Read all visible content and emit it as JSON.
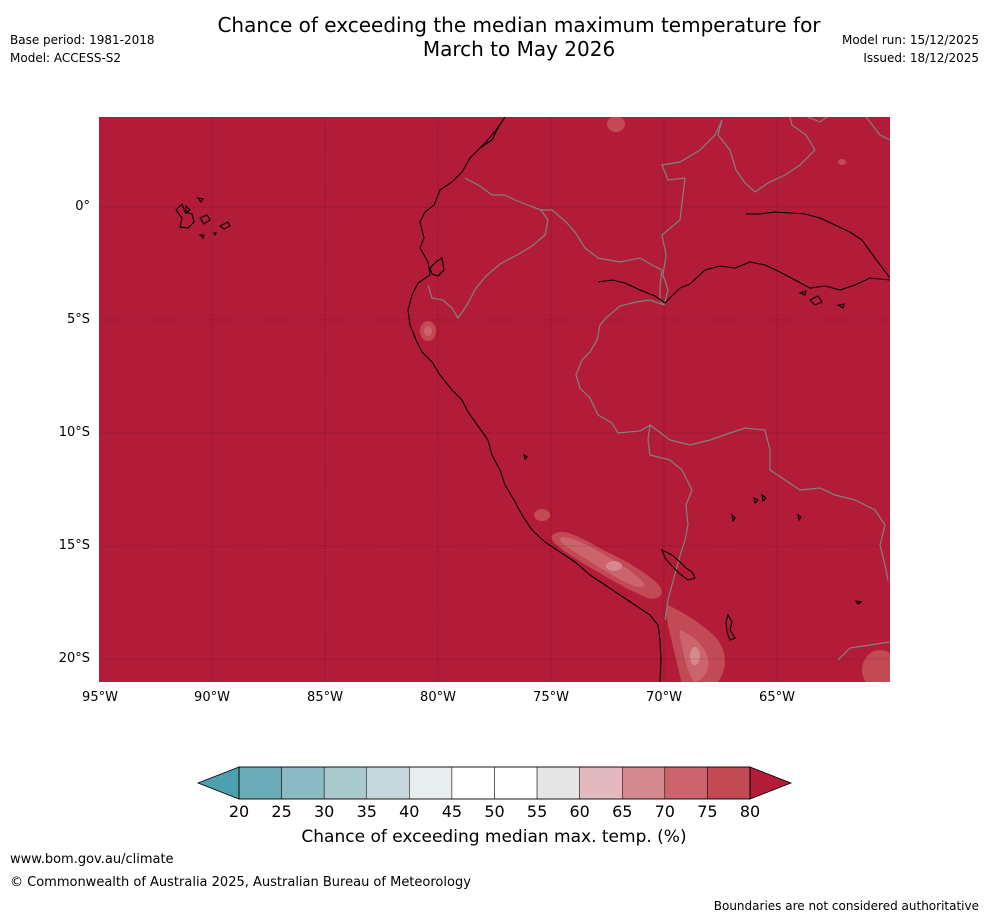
{
  "header": {
    "title_line1": "Chance of exceeding the median maximum temperature for",
    "title_line2": "March to May 2026",
    "base_period": "Base period: 1981-2018",
    "model": "Model: ACCESS-S2",
    "model_run": "Model run: 15/12/2025",
    "issued": "Issued: 18/12/2025"
  },
  "map": {
    "latitude_labels": [
      "0°",
      "5°S",
      "10°S",
      "15°S",
      "20°S"
    ],
    "longitude_labels": [
      "95°W",
      "90°W",
      "85°W",
      "80°W",
      "75°W",
      "70°W",
      "65°W"
    ],
    "dominant_category": "80+",
    "colors": {
      "above_80": "#b31c38",
      "c75_80": "#c24a55",
      "c70_75": "#cc646e",
      "c65_70": "#d4898f",
      "coastline": "#000000",
      "border": "#808080"
    }
  },
  "colorbar": {
    "ticks": [
      "20",
      "25",
      "30",
      "35",
      "40",
      "45",
      "50",
      "55",
      "60",
      "65",
      "70",
      "75",
      "80"
    ],
    "colors": [
      "#6aadb9",
      "#8bb9c4",
      "#a9c9cf",
      "#c6d8dc",
      "#e8eef0",
      "#ffffff",
      "#ffffff",
      "#e6e6e6",
      "#e1b9bf",
      "#d4898f",
      "#cc646e",
      "#c24a55"
    ],
    "low_arrow_color": "#4ea0ae",
    "high_arrow_color": "#b31c38",
    "label": "Chance of exceeding median max. temp. (%)"
  },
  "footer": {
    "url": "www.bom.gov.au/climate",
    "copyright": "© Commonwealth of Australia 2025, Australian Bureau of Meteorology",
    "disclaimer": "Boundaries are not considered authoritative"
  }
}
